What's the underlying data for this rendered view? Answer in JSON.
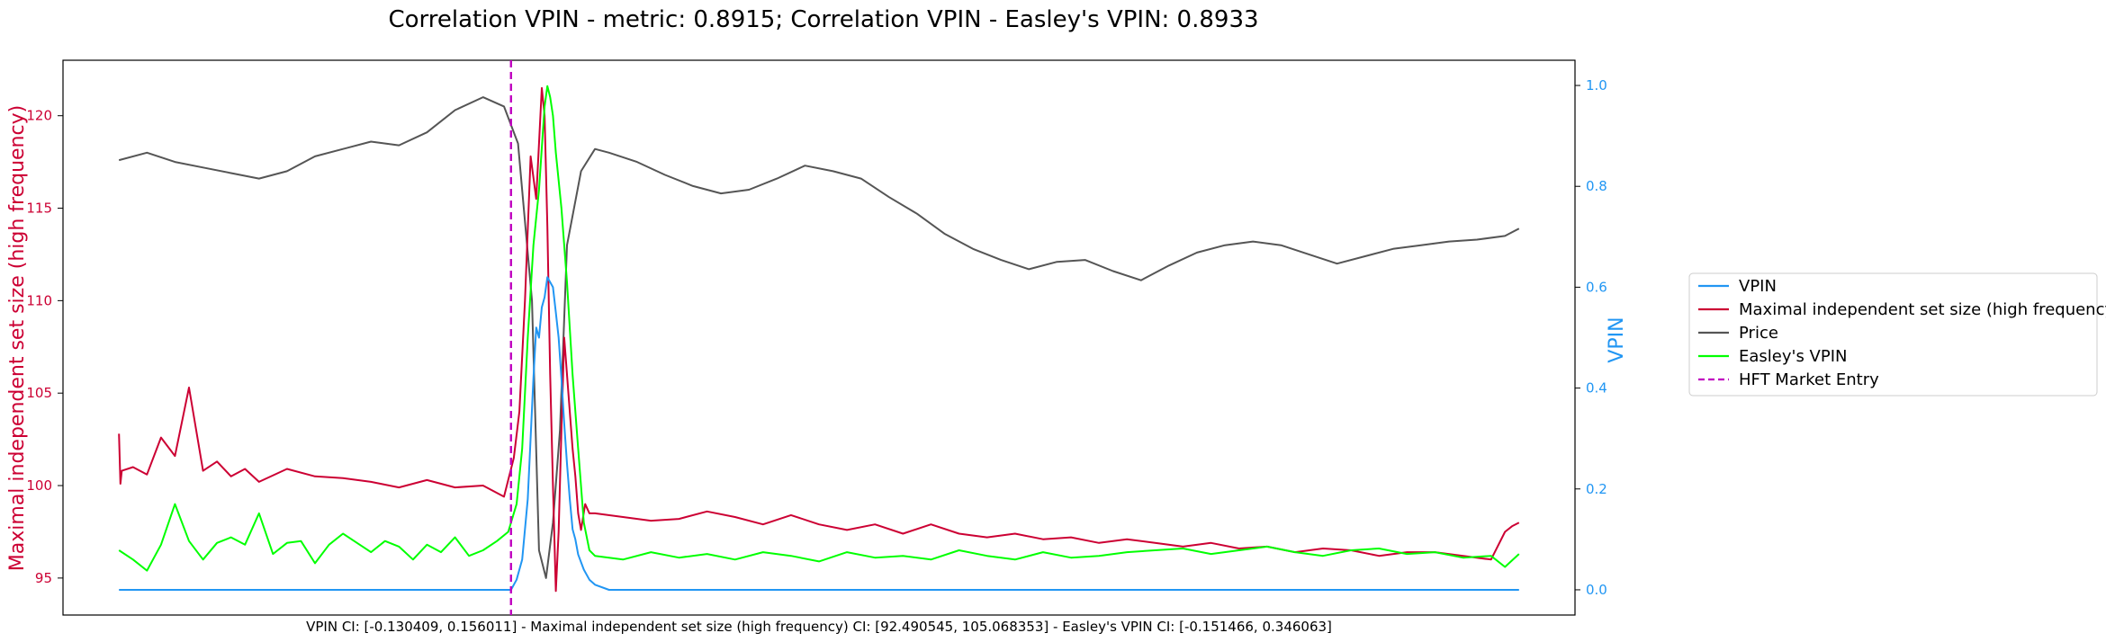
{
  "chart_data": {
    "type": "line",
    "title": "Correlation VPIN - metric: 0.8915; Correlation VPIN - Easley's VPIN: 0.8933",
    "ylabel_left": "Maximal independent set size (high frequency)",
    "ylabel_right": "VPIN",
    "footer_note": "VPIN CI: [-0.130409, 0.156011] - Maximal independent set size (high frequency) CI: [92.490545, 105.068353] - Easley's VPIN CI: [-0.151466, 0.346063]",
    "ylim_left": [
      93,
      123
    ],
    "ylim_right": [
      -0.05,
      1.05
    ],
    "xlim": [
      -40,
      1040
    ],
    "yticks_left": [
      "95",
      "100",
      "105",
      "110",
      "115",
      "120"
    ],
    "yticks_right": [
      "0.0",
      "0.2",
      "0.4",
      "0.6",
      "0.8",
      "1.0"
    ],
    "grid": false,
    "legend_position": "right, outside plot",
    "hft_market_entry_x": 280,
    "colors": {
      "VPIN": "#2196f3",
      "Maximal independent set size (high frequency)": "#cc0033",
      "Price": "#555555",
      "Easley's VPIN": "#00ff00",
      "HFT Market Entry": "#c000c0"
    },
    "series": [
      {
        "name": "Price",
        "axis": "left",
        "x": [
          0,
          20,
          40,
          60,
          80,
          100,
          120,
          140,
          160,
          180,
          200,
          220,
          240,
          260,
          275,
          285,
          295,
          300,
          305,
          310,
          315,
          320,
          330,
          340,
          350,
          370,
          390,
          410,
          430,
          450,
          470,
          490,
          510,
          530,
          550,
          570,
          590,
          610,
          630,
          650,
          670,
          690,
          710,
          730,
          750,
          770,
          790,
          810,
          830,
          850,
          870,
          890,
          910,
          930,
          950,
          970,
          990,
          1000
        ],
        "values": [
          117.6,
          118.0,
          117.5,
          117.2,
          116.9,
          116.6,
          117.0,
          117.8,
          118.2,
          118.6,
          118.4,
          119.1,
          120.3,
          121.0,
          120.5,
          118.5,
          110.0,
          96.5,
          95.0,
          98.0,
          103.0,
          113.0,
          117.0,
          118.2,
          118.0,
          117.5,
          116.8,
          116.2,
          115.8,
          116.0,
          116.6,
          117.3,
          117.0,
          116.6,
          115.6,
          114.7,
          113.6,
          112.8,
          112.2,
          111.7,
          112.1,
          112.2,
          111.6,
          111.1,
          111.9,
          112.6,
          113.0,
          113.2,
          113.0,
          112.5,
          112.0,
          112.4,
          112.8,
          113.0,
          113.2,
          113.3,
          113.5,
          113.9
        ]
      },
      {
        "name": "Maximal independent set size (high frequency)",
        "axis": "left",
        "x": [
          0,
          1,
          2,
          10,
          20,
          30,
          40,
          50,
          60,
          70,
          80,
          90,
          100,
          120,
          140,
          160,
          180,
          200,
          220,
          240,
          260,
          275,
          282,
          286,
          290,
          294,
          298,
          302,
          304,
          306,
          308,
          310,
          312,
          314,
          316,
          318,
          320,
          322,
          324,
          326,
          328,
          330,
          333,
          336,
          340,
          360,
          380,
          400,
          420,
          440,
          460,
          480,
          500,
          520,
          540,
          560,
          580,
          600,
          620,
          640,
          660,
          680,
          700,
          720,
          740,
          760,
          780,
          800,
          820,
          840,
          860,
          880,
          900,
          920,
          940,
          960,
          980,
          990,
          995,
          1000
        ],
        "values": [
          102.8,
          100.1,
          100.8,
          101.0,
          100.6,
          102.6,
          101.6,
          105.3,
          100.8,
          101.3,
          100.5,
          100.9,
          100.2,
          100.9,
          100.5,
          100.4,
          100.2,
          99.9,
          100.3,
          99.9,
          100.0,
          99.4,
          101.5,
          104.0,
          110.0,
          117.8,
          115.5,
          121.5,
          120.0,
          114.0,
          106.0,
          100.0,
          94.3,
          97.5,
          103.0,
          108.0,
          106.0,
          104.0,
          102.0,
          100.5,
          98.5,
          97.6,
          99.0,
          98.5,
          98.5,
          98.3,
          98.1,
          98.2,
          98.6,
          98.3,
          97.9,
          98.4,
          97.9,
          97.6,
          97.9,
          97.4,
          97.9,
          97.4,
          97.2,
          97.4,
          97.1,
          97.2,
          96.9,
          97.1,
          96.9,
          96.7,
          96.9,
          96.6,
          96.7,
          96.4,
          96.6,
          96.5,
          96.2,
          96.4,
          96.4,
          96.2,
          96.0,
          97.5,
          97.8,
          98.0
        ]
      },
      {
        "name": "Easley's VPIN",
        "axis": "left",
        "x": [
          0,
          10,
          20,
          30,
          40,
          50,
          60,
          70,
          80,
          90,
          100,
          110,
          120,
          130,
          140,
          150,
          160,
          170,
          180,
          190,
          200,
          210,
          220,
          230,
          240,
          250,
          260,
          270,
          278,
          284,
          288,
          292,
          296,
          300,
          304,
          306,
          308,
          310,
          312,
          316,
          320,
          324,
          328,
          332,
          336,
          340,
          360,
          380,
          400,
          420,
          440,
          460,
          480,
          500,
          520,
          540,
          560,
          580,
          600,
          620,
          640,
          660,
          680,
          700,
          720,
          740,
          760,
          780,
          800,
          820,
          840,
          860,
          880,
          900,
          920,
          940,
          960,
          980,
          990,
          1000
        ],
        "values": [
          96.5,
          96.0,
          95.4,
          96.8,
          99.0,
          97.0,
          96.0,
          96.9,
          97.2,
          96.8,
          98.5,
          96.3,
          96.9,
          97.0,
          95.8,
          96.8,
          97.4,
          96.9,
          96.4,
          97.0,
          96.7,
          96.0,
          96.8,
          96.4,
          97.2,
          96.2,
          96.5,
          97.0,
          97.5,
          99.0,
          102.0,
          108.0,
          113.0,
          116.0,
          120.5,
          121.6,
          121.0,
          120.0,
          118.0,
          115.0,
          111.0,
          106.0,
          102.0,
          98.0,
          96.5,
          96.2,
          96.0,
          96.4,
          96.1,
          96.3,
          96.0,
          96.4,
          96.2,
          95.9,
          96.4,
          96.1,
          96.2,
          96.0,
          96.5,
          96.2,
          96.0,
          96.4,
          96.1,
          96.2,
          96.4,
          96.5,
          96.6,
          96.3,
          96.5,
          96.7,
          96.4,
          96.2,
          96.5,
          96.6,
          96.3,
          96.4,
          96.1,
          96.2,
          95.6,
          96.3
        ]
      },
      {
        "name": "VPIN",
        "axis": "right",
        "x": [
          0,
          270,
          280,
          284,
          288,
          292,
          296,
          298,
          300,
          302,
          304,
          306,
          308,
          310,
          312,
          314,
          316,
          318,
          320,
          322,
          324,
          326,
          328,
          332,
          336,
          340,
          350,
          1000
        ],
        "values": [
          0.0,
          0.0,
          0.0,
          0.02,
          0.06,
          0.18,
          0.42,
          0.52,
          0.5,
          0.56,
          0.58,
          0.62,
          0.61,
          0.6,
          0.55,
          0.5,
          0.42,
          0.33,
          0.25,
          0.18,
          0.12,
          0.1,
          0.07,
          0.04,
          0.02,
          0.01,
          0.0,
          0.0
        ]
      }
    ]
  },
  "legend": {
    "entries": [
      {
        "label": "VPIN",
        "color": "#2196f3",
        "dashed": false
      },
      {
        "label": "Maximal independent set size (high frequency)",
        "color": "#cc0033",
        "dashed": false
      },
      {
        "label": "Price",
        "color": "#555555",
        "dashed": false
      },
      {
        "label": "Easley's VPIN",
        "color": "#00ff00",
        "dashed": false
      },
      {
        "label": "HFT Market Entry",
        "color": "#c000c0",
        "dashed": true
      }
    ]
  }
}
